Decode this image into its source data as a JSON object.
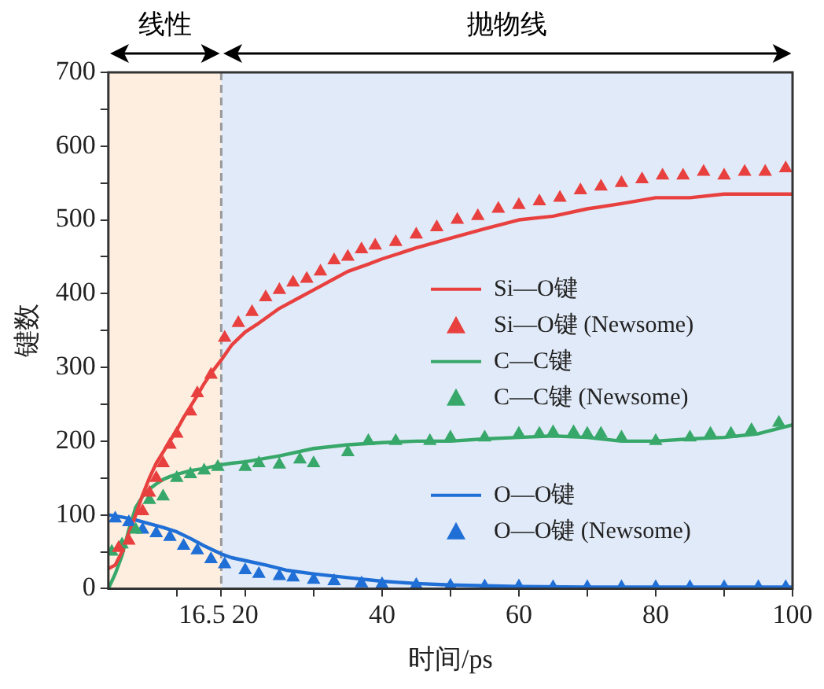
{
  "chart_data": {
    "type": "line",
    "xlabel": "时间/ps",
    "ylabel": "键数",
    "xlim": [
      0,
      100
    ],
    "ylim": [
      0,
      700
    ],
    "xticks": [
      {
        "value": 10,
        "label": null
      },
      16.5,
      20,
      {
        "value": 30,
        "label": null
      },
      40,
      {
        "value": 50,
        "label": null
      },
      60,
      {
        "value": 70,
        "label": null
      },
      80,
      {
        "value": 90,
        "label": null
      },
      100
    ],
    "yticks": [
      0,
      {
        "value": 50,
        "label": null
      },
      100,
      {
        "value": 150,
        "label": null
      },
      200,
      {
        "value": 250,
        "label": null
      },
      300,
      {
        "value": 350,
        "label": null
      },
      400,
      {
        "value": 450,
        "label": null
      },
      500,
      {
        "value": 550,
        "label": null
      },
      600,
      {
        "value": 650,
        "label": null
      },
      700
    ],
    "grid": false,
    "legend": "right",
    "bands": [
      {
        "axis": "x",
        "from": 0,
        "to": 16.5,
        "label": "线性",
        "color": "#fdeee0"
      },
      {
        "axis": "x",
        "from": 16.5,
        "to": 100,
        "label": "抛物线",
        "color": "#e1eaf8"
      }
    ],
    "ref_lines": [
      {
        "axis": "x",
        "value": 16.5,
        "color": "#999999",
        "line_style": "dashed"
      }
    ],
    "series": [
      {
        "name": "Si—O键",
        "type": "line",
        "color": "#e8403f",
        "x": [
          0,
          1,
          2,
          3,
          4,
          5,
          6,
          7,
          8,
          9,
          10,
          11,
          12,
          13,
          14,
          15,
          16.5,
          18,
          20,
          22,
          25,
          28,
          30,
          33,
          35,
          38,
          40,
          45,
          50,
          55,
          60,
          65,
          70,
          75,
          80,
          85,
          90,
          95,
          100
        ],
        "values": [
          27,
          32,
          50,
          75,
          100,
          127,
          150,
          170,
          185,
          200,
          215,
          232,
          247,
          262,
          278,
          292,
          310,
          330,
          348,
          360,
          380,
          395,
          405,
          420,
          430,
          440,
          447,
          462,
          475,
          488,
          500,
          505,
          515,
          522,
          530,
          530,
          535,
          535,
          535
        ]
      },
      {
        "name": "Si—O键 (Newsome)",
        "type": "scatter",
        "color": "#e8403f",
        "x": [
          1.5,
          3,
          5,
          6,
          7,
          8,
          9,
          10,
          12,
          13,
          15,
          17,
          19,
          21,
          23,
          25,
          27,
          29,
          31,
          33,
          35,
          37,
          39,
          42,
          45,
          48,
          51,
          54,
          57,
          60,
          63,
          66,
          69,
          72,
          75,
          78,
          81,
          84,
          87,
          90,
          93,
          96,
          99
        ],
        "values": [
          55,
          65,
          105,
          130,
          150,
          170,
          195,
          210,
          240,
          265,
          290,
          340,
          360,
          375,
          395,
          405,
          415,
          420,
          430,
          445,
          450,
          460,
          465,
          470,
          480,
          490,
          500,
          505,
          515,
          520,
          525,
          530,
          540,
          545,
          550,
          555,
          560,
          560,
          565,
          560,
          565,
          565,
          570
        ]
      },
      {
        "name": "C—C键",
        "type": "line",
        "color": "#37a86a",
        "x": [
          0,
          1,
          2,
          3,
          4,
          5,
          6,
          7,
          8,
          9,
          10,
          12,
          14,
          16.5,
          18,
          20,
          25,
          30,
          35,
          40,
          45,
          50,
          55,
          60,
          65,
          70,
          75,
          80,
          85,
          90,
          95,
          100
        ],
        "values": [
          0,
          20,
          45,
          80,
          110,
          125,
          135,
          142,
          148,
          152,
          155,
          160,
          163,
          168,
          170,
          172,
          180,
          190,
          195,
          198,
          200,
          200,
          203,
          205,
          207,
          205,
          200,
          200,
          203,
          205,
          210,
          222
        ]
      },
      {
        "name": "C—C键 (Newsome)",
        "type": "scatter",
        "color": "#37a86a",
        "x": [
          0.5,
          2,
          4,
          6,
          8,
          10,
          12,
          14,
          16,
          20,
          22,
          25,
          28,
          30,
          35,
          38,
          42,
          47,
          50,
          55,
          60,
          63,
          65,
          68,
          70,
          72,
          75,
          80,
          85,
          88,
          91,
          94,
          98
        ],
        "values": [
          50,
          60,
          80,
          120,
          125,
          150,
          155,
          160,
          165,
          165,
          170,
          168,
          175,
          170,
          185,
          200,
          200,
          200,
          205,
          205,
          210,
          210,
          212,
          212,
          210,
          210,
          205,
          200,
          205,
          210,
          210,
          215,
          225
        ]
      },
      {
        "name": "O—O键",
        "type": "line",
        "color": "#1f6fd6",
        "x": [
          0,
          2,
          4,
          6,
          8,
          10,
          12,
          14,
          16.5,
          18,
          20,
          23,
          26,
          30,
          35,
          40,
          45,
          50,
          60,
          70,
          80,
          90,
          100
        ],
        "values": [
          100,
          97,
          93,
          88,
          83,
          77,
          68,
          58,
          47,
          42,
          38,
          32,
          25,
          20,
          15,
          10,
          7,
          5,
          3,
          2,
          2,
          2,
          2
        ]
      },
      {
        "name": "O—O键 (Newsome)",
        "type": "scatter",
        "color": "#1f6fd6",
        "x": [
          1,
          3,
          5,
          7,
          9,
          11,
          13,
          15,
          17,
          20,
          22,
          25,
          27,
          30,
          33,
          37,
          40,
          45,
          50,
          55,
          60,
          65,
          70,
          75,
          80,
          85,
          90,
          95,
          99
        ],
        "values": [
          95,
          90,
          80,
          75,
          70,
          58,
          52,
          40,
          33,
          25,
          20,
          17,
          15,
          12,
          10,
          7,
          6,
          5,
          4,
          3,
          3,
          2,
          2,
          2,
          2,
          2,
          2,
          2,
          2
        ]
      }
    ]
  }
}
